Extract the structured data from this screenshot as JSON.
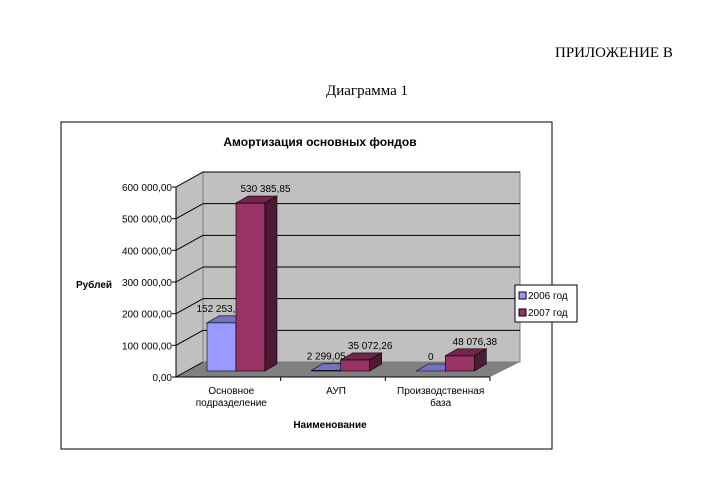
{
  "document": {
    "appendix_label": "ПРИЛОЖЕНИЕ В",
    "diagram_label": "Диаграмма 1"
  },
  "chart_data": {
    "type": "bar",
    "title": "Амортизация основных фондов",
    "xlabel": "Наименование",
    "ylabel": "Рублей",
    "ylim": [
      0,
      600000
    ],
    "yticks": [
      "0,00",
      "100 000,00",
      "200 000,00",
      "300 000,00",
      "400 000,00",
      "500 000,00",
      "600 000,00"
    ],
    "categories": [
      [
        "Основное",
        "подразделение"
      ],
      [
        "АУП"
      ],
      [
        "Производственная",
        "база"
      ]
    ],
    "series": [
      {
        "name": "2006 год",
        "values": [
          152253.0,
          2299.05,
          0
        ],
        "labels": [
          "152 253,00",
          "2 299,05",
          "0"
        ],
        "color": "#9999ff"
      },
      {
        "name": "2007 год",
        "values": [
          530385.85,
          35072.26,
          48076.38
        ],
        "labels": [
          "530 385,85",
          "35 072,26",
          "48 076,38"
        ],
        "color": "#993366"
      }
    ],
    "legend": "right",
    "grid": true,
    "colors": {
      "wall": "#c0c0c0",
      "floor": "#808080"
    }
  }
}
